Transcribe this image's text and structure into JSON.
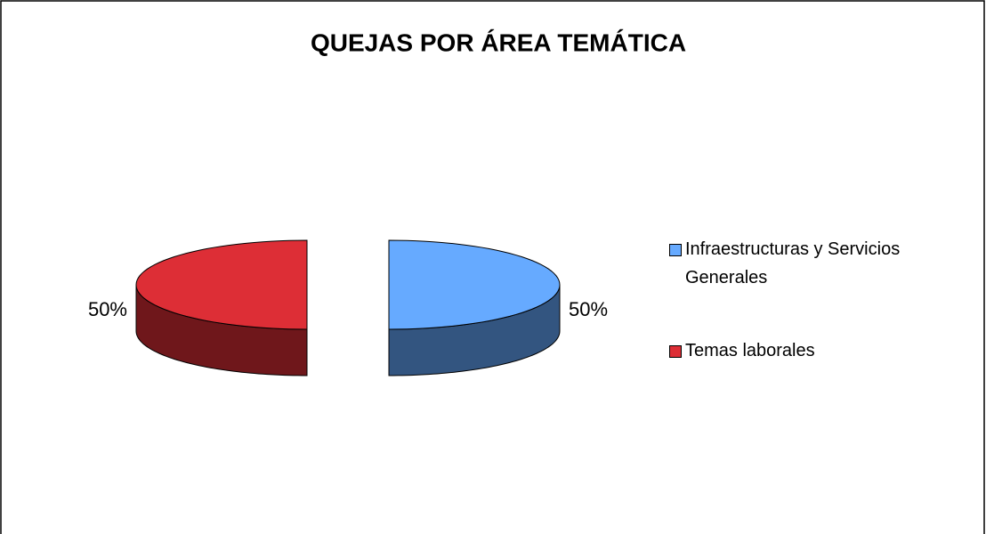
{
  "chart_data": {
    "type": "pie",
    "title": "QUEJAS POR ÁREA TEMÁTICA",
    "categories": [
      "Infraestructuras y Servicios Generales",
      "Temas laborales"
    ],
    "values": [
      50,
      50
    ],
    "value_labels": [
      "50%",
      "50%"
    ],
    "colors": [
      "#66aaff",
      "#dd2e36"
    ],
    "legend": "right"
  }
}
